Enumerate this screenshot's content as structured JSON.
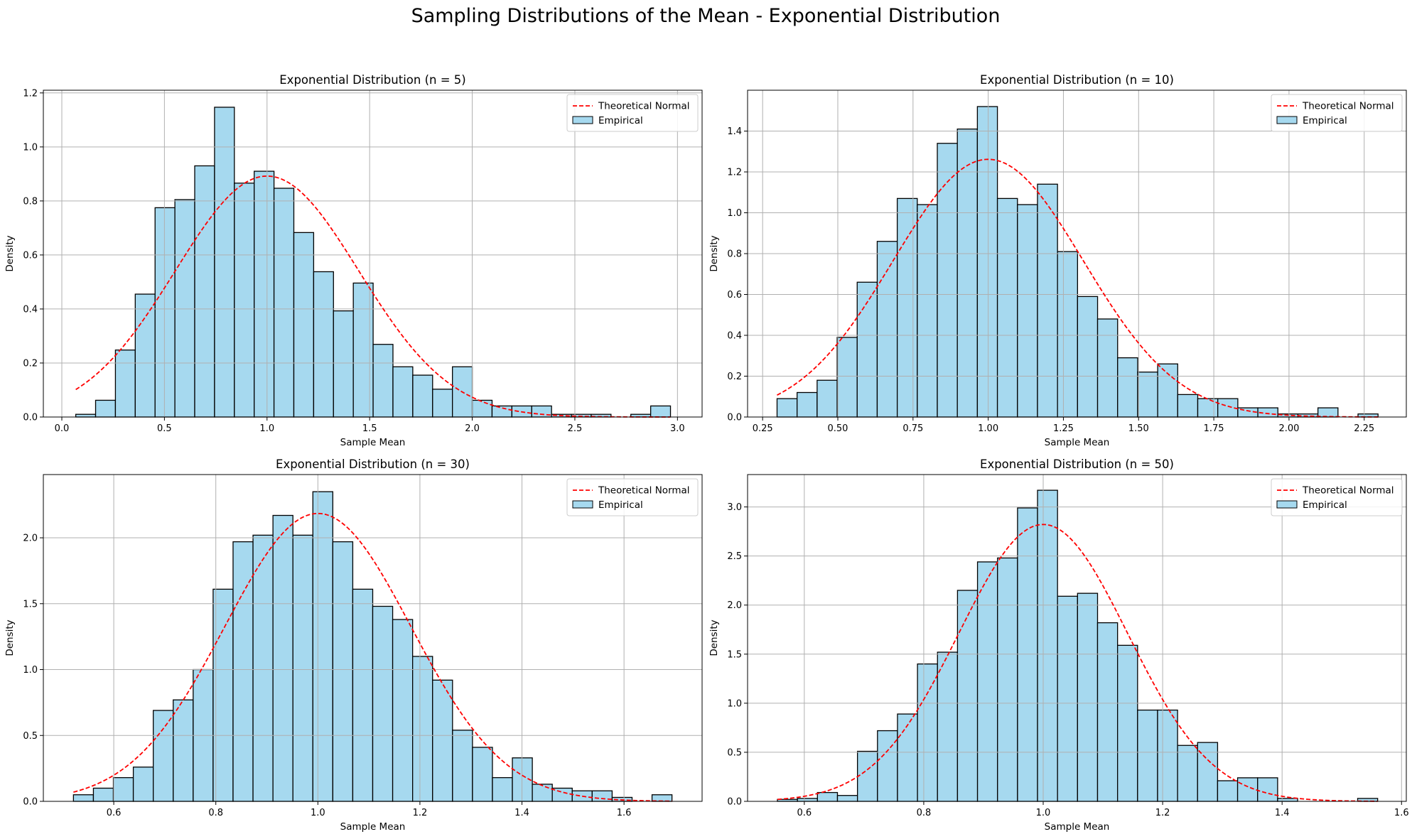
{
  "figure": {
    "title": "Sampling Distributions of the Mean - Exponential Distribution"
  },
  "legend": {
    "placement": "top-right",
    "theoretical_label": "Theoretical Normal",
    "empirical_label": "Empirical"
  },
  "colors": {
    "bar_fill": "#a6d9ef",
    "bar_edge": "#000000",
    "curve": "#ff0000",
    "grid": "#b0b0b0"
  },
  "chart_data": [
    {
      "type": "bar",
      "title": "Exponential Distribution (n = 5)",
      "xlabel": "Sample Mean",
      "ylabel": "Density",
      "grid": true,
      "xlim": [
        -0.09,
        3.12
      ],
      "ylim": [
        0,
        1.21
      ],
      "xticks": [
        0.0,
        0.5,
        1.0,
        1.5,
        2.0,
        2.5,
        3.0
      ],
      "xtick_labels": [
        "0.0",
        "0.5",
        "1.0",
        "1.5",
        "2.0",
        "2.5",
        "3.0"
      ],
      "yticks": [
        0.0,
        0.2,
        0.4,
        0.6,
        0.8,
        1.0,
        1.2
      ],
      "ytick_labels": [
        "0.0",
        "0.2",
        "0.4",
        "0.6",
        "0.8",
        "1.0",
        "1.2"
      ],
      "bin_start": 0.068,
      "bin_width": 0.0966,
      "values": [
        0.01,
        0.062,
        0.248,
        0.455,
        0.775,
        0.805,
        0.93,
        1.147,
        0.866,
        0.91,
        0.847,
        0.683,
        0.538,
        0.393,
        0.496,
        0.269,
        0.186,
        0.155,
        0.103,
        0.186,
        0.062,
        0.041,
        0.041,
        0.041,
        0.01,
        0.01,
        0.01,
        0.0,
        0.01,
        0.041
      ],
      "normal_mean": 1.0,
      "normal_sd": 0.4472,
      "curve_range": [
        0.068,
        2.965
      ]
    },
    {
      "type": "bar",
      "title": "Exponential Distribution (n = 10)",
      "xlabel": "Sample Mean",
      "ylabel": "Density",
      "grid": true,
      "xlim": [
        0.2,
        2.39
      ],
      "ylim": [
        0,
        1.6
      ],
      "xticks": [
        0.25,
        0.5,
        0.75,
        1.0,
        1.25,
        1.5,
        1.75,
        2.0,
        2.25
      ],
      "xtick_labels": [
        "0.25",
        "0.50",
        "0.75",
        "1.00",
        "1.25",
        "1.50",
        "1.75",
        "2.00",
        "2.25"
      ],
      "yticks": [
        0.0,
        0.2,
        0.4,
        0.6,
        0.8,
        1.0,
        1.2,
        1.4
      ],
      "ytick_labels": [
        "0.0",
        "0.2",
        "0.4",
        "0.6",
        "0.8",
        "1.0",
        "1.2",
        "1.4"
      ],
      "bin_start": 0.298,
      "bin_width": 0.0666,
      "values": [
        0.09,
        0.12,
        0.18,
        0.39,
        0.66,
        0.86,
        1.07,
        1.04,
        1.34,
        1.41,
        1.52,
        1.07,
        1.04,
        1.14,
        0.81,
        0.59,
        0.48,
        0.29,
        0.22,
        0.26,
        0.11,
        0.09,
        0.09,
        0.045,
        0.045,
        0.015,
        0.015,
        0.045,
        0.0,
        0.015
      ],
      "normal_mean": 1.0,
      "normal_sd": 0.3162,
      "curve_range": [
        0.298,
        2.296
      ]
    },
    {
      "type": "bar",
      "title": "Exponential Distribution (n = 30)",
      "xlabel": "Sample Mean",
      "ylabel": "Density",
      "grid": true,
      "xlim": [
        0.462,
        1.753
      ],
      "ylim": [
        0,
        2.48
      ],
      "xticks": [
        0.6,
        0.8,
        1.0,
        1.2,
        1.4,
        1.6
      ],
      "xtick_labels": [
        "0.6",
        "0.8",
        "1.0",
        "1.2",
        "1.4",
        "1.6"
      ],
      "yticks": [
        0.0,
        0.5,
        1.0,
        1.5,
        2.0
      ],
      "ytick_labels": [
        "0.0",
        "0.5",
        "1.0",
        "1.5",
        "2.0"
      ],
      "bin_start": 0.521,
      "bin_width": 0.0391,
      "values": [
        0.05,
        0.1,
        0.18,
        0.26,
        0.69,
        0.77,
        1.0,
        1.61,
        1.97,
        2.02,
        2.17,
        2.02,
        2.35,
        1.97,
        1.61,
        1.48,
        1.38,
        1.1,
        0.92,
        0.54,
        0.41,
        0.18,
        0.33,
        0.13,
        0.1,
        0.08,
        0.08,
        0.03,
        0.0,
        0.05
      ],
      "normal_mean": 1.0,
      "normal_sd": 0.1826,
      "curve_range": [
        0.521,
        1.694
      ]
    },
    {
      "type": "bar",
      "title": "Exponential Distribution (n = 50)",
      "xlabel": "Sample Mean",
      "ylabel": "Density",
      "grid": true,
      "xlim": [
        0.505,
        1.608
      ],
      "ylim": [
        0,
        3.33
      ],
      "xticks": [
        0.6,
        0.8,
        1.0,
        1.2,
        1.4,
        1.6
      ],
      "xtick_labels": [
        "0.6",
        "0.8",
        "1.0",
        "1.2",
        "1.4",
        "1.6"
      ],
      "yticks": [
        0.0,
        0.5,
        1.0,
        1.5,
        2.0,
        2.5,
        3.0
      ],
      "ytick_labels": [
        "0.0",
        "0.5",
        "1.0",
        "1.5",
        "2.0",
        "2.5",
        "3.0"
      ],
      "bin_start": 0.555,
      "bin_width": 0.0335,
      "values": [
        0.02,
        0.03,
        0.09,
        0.06,
        0.51,
        0.72,
        0.89,
        1.4,
        1.52,
        2.15,
        2.44,
        2.48,
        2.99,
        3.17,
        2.09,
        2.12,
        1.82,
        1.59,
        0.93,
        0.93,
        0.57,
        0.6,
        0.21,
        0.24,
        0.24,
        0.03,
        0.0,
        0.0,
        0.0,
        0.03
      ],
      "normal_mean": 1.0,
      "normal_sd": 0.1414,
      "curve_range": [
        0.555,
        1.56
      ]
    }
  ]
}
